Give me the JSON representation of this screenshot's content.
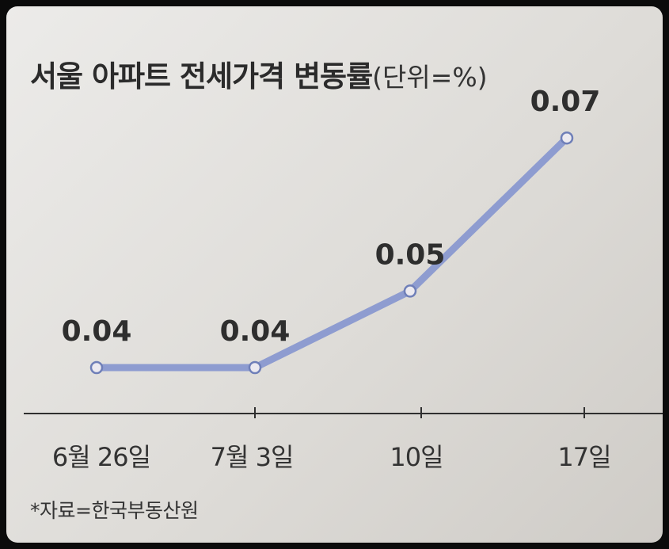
{
  "chart_data": {
    "type": "line",
    "title": "서울 아파트 전세가격 변동률",
    "unit_label": "(단위=%)",
    "categories": [
      "6월 26일",
      "7월 3일",
      "10일",
      "17일"
    ],
    "values": [
      0.04,
      0.04,
      0.05,
      0.07
    ],
    "data_labels": [
      "0.04",
      "0.04",
      "0.05",
      "0.07"
    ],
    "source": "*자료=한국부동산원",
    "grid": false,
    "line_color": "#8e9cd0",
    "marker_fill": "#eceaf0",
    "axis_color": "#2f2f2f"
  }
}
